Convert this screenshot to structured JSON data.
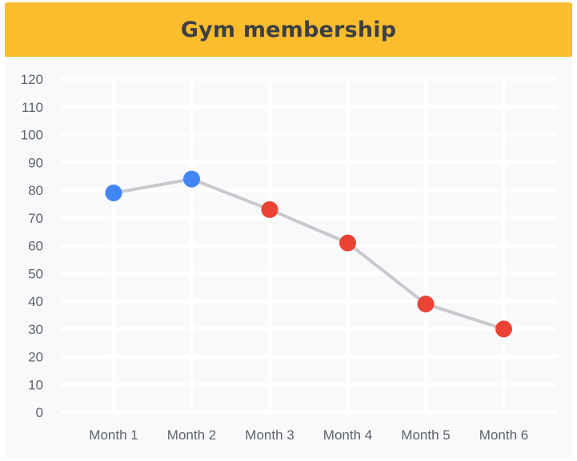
{
  "chart_data": {
    "type": "line",
    "title": "Gym membership",
    "categories": [
      "Month 1",
      "Month 2",
      "Month 3",
      "Month 4",
      "Month 5",
      "Month 6"
    ],
    "values": [
      79,
      84,
      73,
      61,
      39,
      30
    ],
    "point_colors": [
      "#4285f4",
      "#4285f4",
      "#ea4335",
      "#ea4335",
      "#ea4335",
      "#ea4335"
    ],
    "line_color": "#c7c9cc",
    "ylim": [
      0,
      120
    ],
    "yticks": [
      0,
      10,
      20,
      30,
      40,
      50,
      60,
      70,
      80,
      90,
      100,
      110,
      120
    ],
    "grid": true,
    "xlabel": "",
    "ylabel": ""
  },
  "colors": {
    "title_bar": "#fbbc2e",
    "background": "#f8f9fa",
    "grid": "#ffffff"
  }
}
